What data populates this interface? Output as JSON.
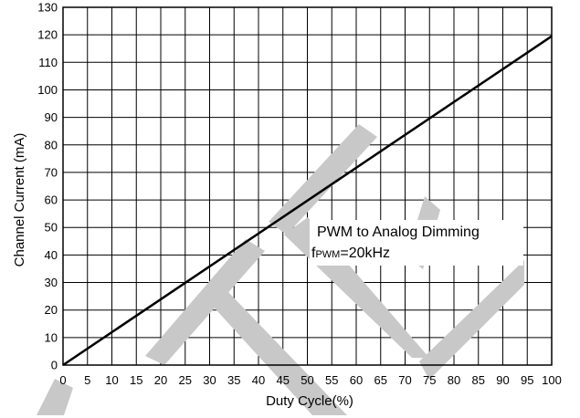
{
  "chart_data": {
    "type": "line",
    "title": "",
    "xlabel": "Duty Cycle(%)",
    "ylabel": "Channel Current (mA)",
    "xlim": [
      0,
      100
    ],
    "ylim": [
      0,
      130
    ],
    "xticks": [
      0,
      5,
      10,
      15,
      20,
      25,
      30,
      35,
      40,
      45,
      50,
      55,
      60,
      65,
      70,
      75,
      80,
      85,
      90,
      95,
      100
    ],
    "yticks": [
      0,
      10,
      20,
      30,
      40,
      50,
      60,
      70,
      80,
      90,
      100,
      110,
      120,
      130
    ],
    "grid": true,
    "series": [
      {
        "x": [
          0,
          100
        ],
        "y": [
          0,
          119.5
        ],
        "color": "#000000"
      }
    ],
    "annotation": {
      "line1": "PWM to Analog Dimming",
      "line2_prefix": "f",
      "line2_sub": "PWM",
      "line2_suffix": "=20kHz"
    },
    "watermark": {
      "name": "watermark-logo",
      "color": "#c8c8c8"
    }
  }
}
